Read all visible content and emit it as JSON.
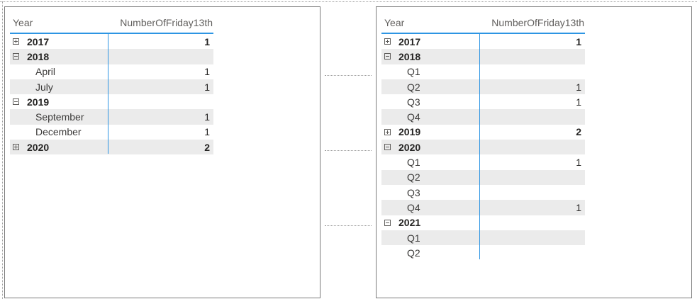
{
  "left_matrix": {
    "headers": {
      "row_field": "Year",
      "measure": "NumberOfFriday13th"
    },
    "rows": [
      {
        "level": "year",
        "label": "2017",
        "value": "1",
        "state": "collapsed"
      },
      {
        "level": "year",
        "label": "2018",
        "value": "",
        "state": "expanded"
      },
      {
        "level": "child",
        "label": "April",
        "value": "1"
      },
      {
        "level": "child",
        "label": "July",
        "value": "1"
      },
      {
        "level": "year",
        "label": "2019",
        "value": "",
        "state": "expanded"
      },
      {
        "level": "child",
        "label": "September",
        "value": "1"
      },
      {
        "level": "child",
        "label": "December",
        "value": "1"
      },
      {
        "level": "year",
        "label": "2020",
        "value": "2",
        "state": "collapsed"
      }
    ]
  },
  "right_matrix": {
    "headers": {
      "row_field": "Year",
      "measure": "NumberOfFriday13th"
    },
    "rows": [
      {
        "level": "year",
        "label": "2017",
        "value": "1",
        "state": "collapsed"
      },
      {
        "level": "year",
        "label": "2018",
        "value": "",
        "state": "expanded"
      },
      {
        "level": "child",
        "label": "Q1",
        "value": ""
      },
      {
        "level": "child",
        "label": "Q2",
        "value": "1"
      },
      {
        "level": "child",
        "label": "Q3",
        "value": "1"
      },
      {
        "level": "child",
        "label": "Q4",
        "value": ""
      },
      {
        "level": "year",
        "label": "2019",
        "value": "2",
        "state": "collapsed"
      },
      {
        "level": "year",
        "label": "2020",
        "value": "",
        "state": "expanded"
      },
      {
        "level": "child",
        "label": "Q1",
        "value": "1"
      },
      {
        "level": "child",
        "label": "Q2",
        "value": ""
      },
      {
        "level": "child",
        "label": "Q3",
        "value": ""
      },
      {
        "level": "child",
        "label": "Q4",
        "value": "1"
      },
      {
        "level": "year",
        "label": "2021",
        "value": "",
        "state": "expanded"
      },
      {
        "level": "child",
        "label": "Q1",
        "value": ""
      },
      {
        "level": "child",
        "label": "Q2",
        "value": ""
      }
    ]
  },
  "icons": {
    "expanded": "minus-box-icon",
    "collapsed": "plus-box-icon"
  },
  "colors": {
    "accent": "#2d95e3",
    "alt_row": "#ebebeb",
    "border": "#7b7b7b"
  }
}
